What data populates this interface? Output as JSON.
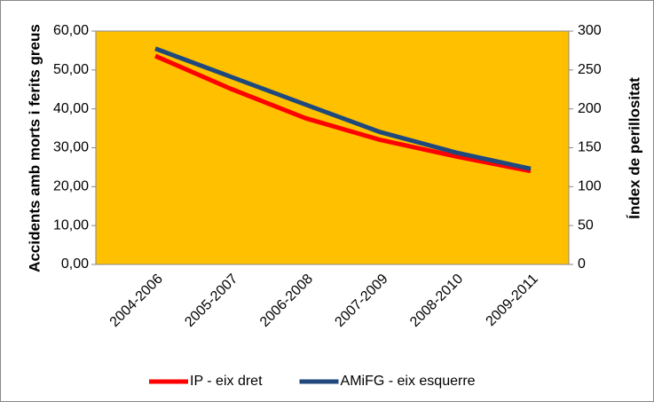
{
  "chart_data": {
    "type": "line",
    "ylabel": "Accidents amb morts i ferits greus",
    "y2label": "Índex de perillositat",
    "categories": [
      "2004-2006",
      "2005-2007",
      "2006-2008",
      "2007-2009",
      "2008-2010",
      "2009-2011"
    ],
    "series": [
      {
        "name": "IP - eix dret",
        "color": "#ff0000",
        "axis": "y2",
        "values": [
          268,
          226,
          188,
          160,
          139,
          120
        ]
      },
      {
        "name": "AMiFG - eix esquerre",
        "color": "#1f497d",
        "values": [
          55.5,
          48.3,
          41.1,
          34.0,
          28.8,
          24.6
        ]
      }
    ],
    "ylim": [
      0,
      60
    ],
    "yticks": [
      {
        "value": 0,
        "label": "0,00"
      },
      {
        "value": 10,
        "label": "10,00"
      },
      {
        "value": 20,
        "label": "20,00"
      },
      {
        "value": 30,
        "label": "30,00"
      },
      {
        "value": 40,
        "label": "40,00"
      },
      {
        "value": 50,
        "label": "50,00"
      },
      {
        "value": 60,
        "label": "60,00"
      }
    ],
    "y2lim": [
      0,
      300
    ],
    "y2ticks": [
      0,
      50,
      100,
      150,
      200,
      250,
      300
    ],
    "plot_background": "#ffc000",
    "legend": "bottom"
  }
}
